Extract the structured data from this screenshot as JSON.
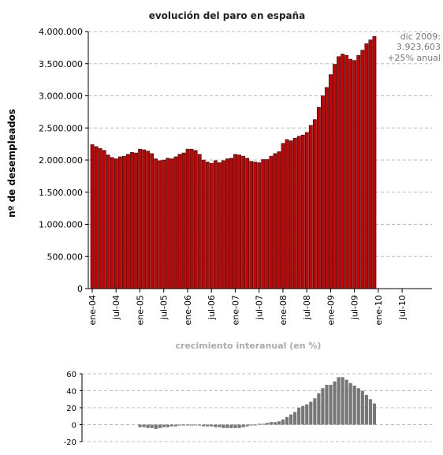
{
  "chart_data": [
    {
      "type": "bar",
      "title": "evolución del paro en españa",
      "ylabel": "nº de desempleados",
      "xlabel": "",
      "ylim": [
        0,
        4000000
      ],
      "yticks": [
        0,
        500000,
        1000000,
        1500000,
        2000000,
        2500000,
        3000000,
        3500000,
        4000000
      ],
      "ytick_labels": [
        "0",
        "500.000",
        "1.000.000",
        "1.500.000",
        "2.000.000",
        "2.500.000",
        "3.000.000",
        "3.500.000",
        "4.000.000"
      ],
      "xtick_labels": [
        "ene-04",
        "jul-04",
        "ene-05",
        "jul-05",
        "ene-06",
        "jul-06",
        "ene-07",
        "jul-07",
        "ene-08",
        "jul-08",
        "ene-09",
        "jul-09",
        "ene-10",
        "jul-10"
      ],
      "grid": true,
      "bar_color": "#cc0000",
      "annotation": [
        "dic 2009:",
        "3.923.603",
        "+25% anual"
      ],
      "values": [
        2240000,
        2210000,
        2180000,
        2150000,
        2080000,
        2040000,
        2020000,
        2050000,
        2060000,
        2090000,
        2120000,
        2110000,
        2170000,
        2160000,
        2140000,
        2100000,
        2020000,
        1990000,
        2000000,
        2030000,
        2020000,
        2050000,
        2090000,
        2110000,
        2170000,
        2170000,
        2150000,
        2090000,
        2000000,
        1970000,
        1950000,
        1990000,
        1960000,
        1990000,
        2020000,
        2030000,
        2090000,
        2080000,
        2060000,
        2030000,
        1980000,
        1970000,
        1960000,
        2010000,
        2010000,
        2060000,
        2100000,
        2130000,
        2260000,
        2320000,
        2300000,
        2340000,
        2370000,
        2390000,
        2430000,
        2540000,
        2630000,
        2820000,
        3000000,
        3130000,
        3330000,
        3490000,
        3610000,
        3650000,
        3630000,
        3570000,
        3550000,
        3630000,
        3710000,
        3810000,
        3870000,
        3923603
      ]
    },
    {
      "type": "bar",
      "title": "crecimiento interanual (en %)",
      "xlabel": "",
      "ylabel": "",
      "ylim": [
        -20,
        60
      ],
      "yticks": [
        -20,
        0,
        20,
        40,
        60
      ],
      "ytick_labels": [
        "-20",
        "0",
        "20",
        "40",
        "60"
      ],
      "grid": true,
      "bar_color": "#777777",
      "values": [
        -3,
        -3,
        -4,
        -4,
        -5,
        -4,
        -3,
        -3,
        -2,
        -2,
        -1,
        -1,
        -1,
        -1,
        0,
        -1,
        -2,
        -2,
        -2,
        -3,
        -3,
        -4,
        -4,
        -4,
        -4,
        -4,
        -3,
        -2,
        -1,
        0,
        1,
        1,
        2,
        3,
        3,
        4,
        6,
        9,
        12,
        15,
        20,
        22,
        24,
        27,
        31,
        37,
        43,
        47,
        47,
        51,
        56,
        56,
        53,
        49,
        46,
        43,
        40,
        35,
        30,
        25
      ]
    }
  ]
}
